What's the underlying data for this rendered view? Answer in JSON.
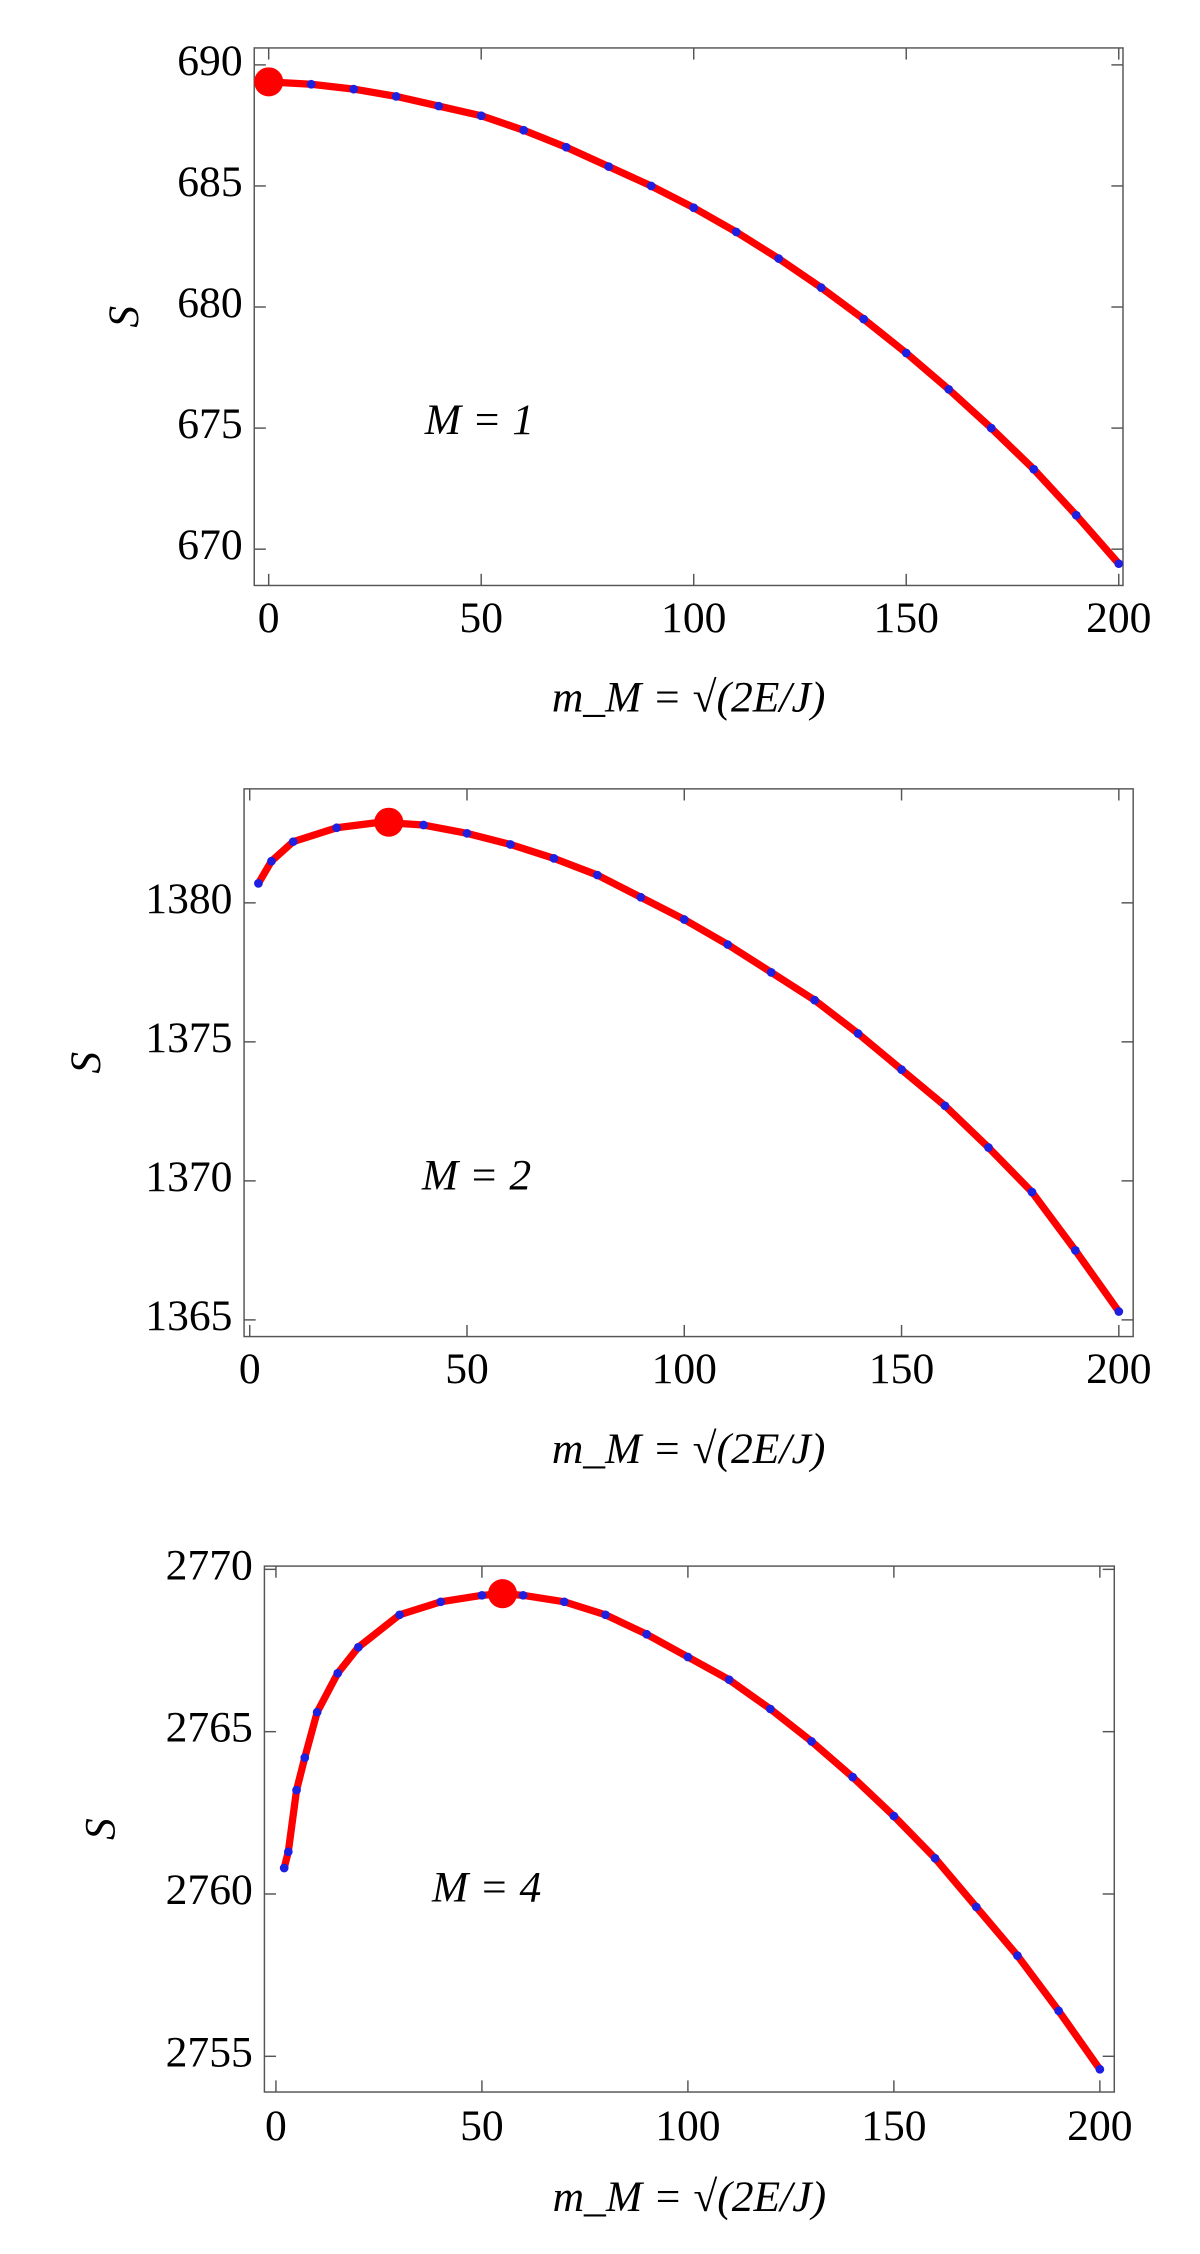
{
  "chart_data": [
    {
      "type": "line",
      "annotation": "M = 1",
      "x_label": "m_M = √(2E/J)",
      "y_label": "S",
      "xlim": [
        -3.4,
        201
      ],
      "ylim": [
        668.5,
        690.7
      ],
      "xticks": [
        0,
        50,
        100,
        150,
        200
      ],
      "yticks": [
        670,
        675,
        680,
        685,
        690
      ],
      "series": [
        {
          "color": "#ff0000",
          "marker_color": "#1f1fe0",
          "x": [
            0,
            10,
            20,
            30,
            40,
            50,
            60,
            70,
            80,
            90,
            100,
            110,
            120,
            130,
            140,
            150,
            160,
            170,
            180,
            190,
            200
          ],
          "values": [
            689.3,
            689.2,
            689.0,
            688.7,
            688.3,
            687.9,
            687.3,
            686.6,
            685.8,
            685.0,
            684.1,
            683.1,
            682.0,
            680.8,
            679.5,
            678.1,
            676.6,
            675.0,
            673.3,
            671.4,
            669.4
          ]
        }
      ],
      "highlight": {
        "x": 0,
        "y": 689.3,
        "color": "#ff0000"
      }
    },
    {
      "type": "line",
      "annotation": "M = 2",
      "x_label": "m_M = √(2E/J)",
      "y_label": "S",
      "xlim": [
        -1.3,
        203.3
      ],
      "ylim": [
        1364.4,
        1384.1
      ],
      "xticks": [
        0,
        50,
        100,
        150,
        200
      ],
      "yticks": [
        1365,
        1370,
        1375,
        1380
      ],
      "series": [
        {
          "color": "#ff0000",
          "marker_color": "#1f1fe0",
          "x": [
            2,
            5,
            10,
            20,
            30,
            40,
            50,
            60,
            70,
            80,
            90,
            100,
            110,
            120,
            130,
            140,
            150,
            160,
            170,
            180,
            190,
            200
          ],
          "values": [
            1380.7,
            1381.5,
            1382.2,
            1382.7,
            1382.9,
            1382.8,
            1382.5,
            1382.1,
            1381.6,
            1381.0,
            1380.2,
            1379.4,
            1378.5,
            1377.5,
            1376.5,
            1375.3,
            1374.0,
            1372.7,
            1371.2,
            1369.6,
            1367.5,
            1365.3
          ]
        }
      ],
      "highlight": {
        "x": 32,
        "y": 1382.9,
        "color": "#ff0000"
      }
    },
    {
      "type": "line",
      "annotation": "M = 4",
      "x_label": "m_M = √(2E/J)",
      "y_label": "S",
      "xlim": [
        -2.8,
        203.5
      ],
      "ylim": [
        2753.9,
        2770.1
      ],
      "xticks": [
        0,
        50,
        100,
        150,
        200
      ],
      "yticks": [
        2755,
        2760,
        2765,
        2770
      ],
      "series": [
        {
          "color": "#ff0000",
          "marker_color": "#1f1fe0",
          "x": [
            2,
            3,
            5,
            7,
            10,
            15,
            20,
            30,
            40,
            50,
            55,
            60,
            70,
            80,
            90,
            100,
            110,
            120,
            130,
            140,
            150,
            160,
            170,
            180,
            190,
            200
          ],
          "values": [
            2760.8,
            2761.3,
            2763.2,
            2764.2,
            2765.6,
            2766.8,
            2767.6,
            2768.6,
            2769.0,
            2769.2,
            2769.25,
            2769.2,
            2769.0,
            2768.6,
            2768.0,
            2767.3,
            2766.6,
            2765.7,
            2764.7,
            2763.6,
            2762.4,
            2761.1,
            2759.6,
            2758.1,
            2756.4,
            2754.6
          ]
        }
      ],
      "highlight": {
        "x": 55,
        "y": 2769.25,
        "color": "#ff0000"
      }
    }
  ]
}
